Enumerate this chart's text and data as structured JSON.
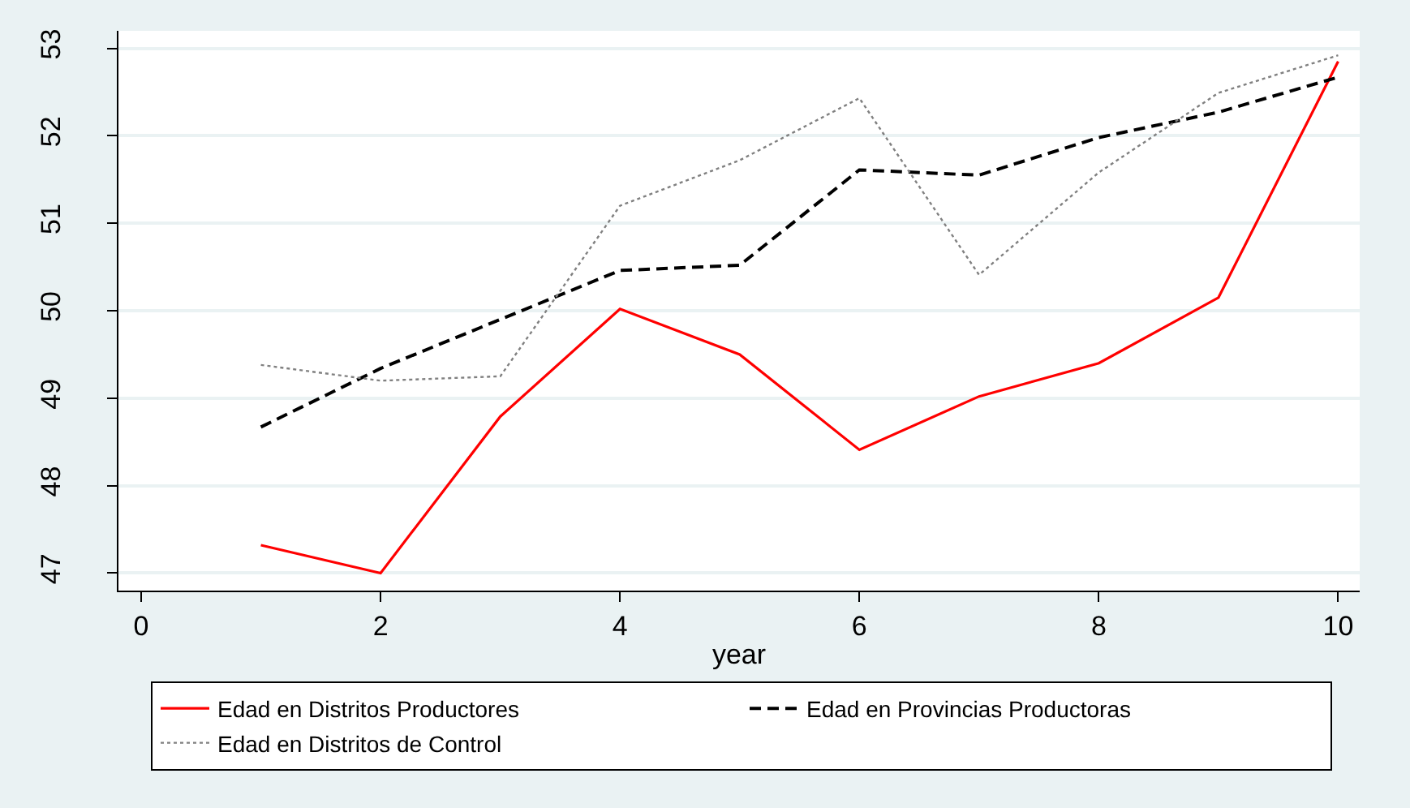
{
  "chart_data": {
    "type": "line",
    "xlabel": "year",
    "x": [
      1,
      2,
      3,
      4,
      5,
      6,
      7,
      8,
      9,
      10
    ],
    "series": [
      {
        "name": "Edad en Distritos Productores",
        "color": "#ff0000",
        "line_style": "solid",
        "values": [
          47.32,
          47.0,
          48.79,
          50.02,
          49.5,
          48.41,
          49.02,
          49.4,
          50.15,
          52.85
        ]
      },
      {
        "name": "Edad en Provincias Productoras",
        "color": "#000000",
        "line_style": "dashed",
        "values": [
          48.67,
          49.34,
          49.9,
          50.46,
          50.52,
          51.61,
          51.55,
          51.98,
          52.27,
          52.67
        ]
      },
      {
        "name": "Edad en Distritos de Control",
        "color": "#808080",
        "line_style": "dotted",
        "values": [
          49.38,
          49.2,
          49.25,
          51.2,
          51.72,
          52.43,
          50.41,
          51.58,
          52.49,
          52.92
        ]
      }
    ],
    "xlim": [
      -0.19,
      10.18
    ],
    "ylim": [
      46.8,
      53.2
    ],
    "xticks": [
      0,
      2,
      4,
      6,
      8,
      10
    ],
    "yticks": [
      47,
      48,
      49,
      50,
      51,
      52,
      53
    ],
    "grid": "y",
    "legend": "bottom"
  }
}
